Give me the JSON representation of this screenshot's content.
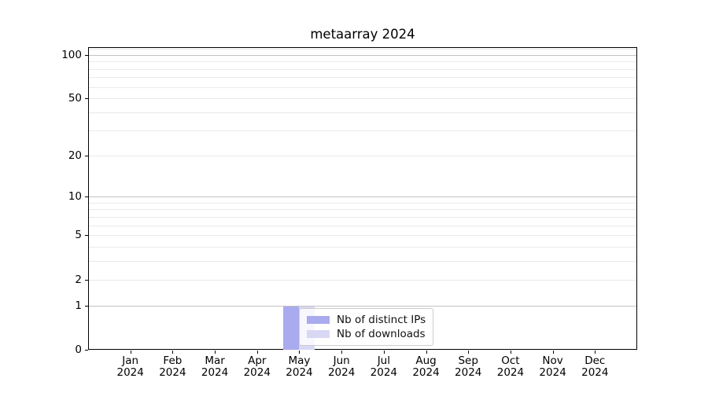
{
  "figure": {
    "background": "#ffffff"
  },
  "chart_data": {
    "type": "bar",
    "title": "metaarray 2024",
    "x_categories": [
      {
        "month": "Jan",
        "year": "2024"
      },
      {
        "month": "Feb",
        "year": "2024"
      },
      {
        "month": "Mar",
        "year": "2024"
      },
      {
        "month": "Apr",
        "year": "2024"
      },
      {
        "month": "May",
        "year": "2024"
      },
      {
        "month": "Jun",
        "year": "2024"
      },
      {
        "month": "Jul",
        "year": "2024"
      },
      {
        "month": "Aug",
        "year": "2024"
      },
      {
        "month": "Sep",
        "year": "2024"
      },
      {
        "month": "Oct",
        "year": "2024"
      },
      {
        "month": "Nov",
        "year": "2024"
      },
      {
        "month": "Dec",
        "year": "2024"
      }
    ],
    "series": [
      {
        "name": "Nb of distinct IPs",
        "color": "#aaaaee",
        "values": [
          0,
          0,
          0,
          0,
          1,
          0,
          0,
          0,
          0,
          0,
          0,
          0
        ]
      },
      {
        "name": "Nb of downloads",
        "color": "#d8d8f5",
        "values": [
          0,
          0,
          0,
          0,
          1,
          0,
          0,
          0,
          0,
          0,
          0,
          0
        ]
      }
    ],
    "yscale": "log(1+y)",
    "yticks": [
      0,
      1,
      2,
      5,
      10,
      20,
      50,
      100
    ],
    "ytick_labels": [
      "0",
      "1",
      "2",
      "5",
      "10",
      "20",
      "50",
      "100"
    ],
    "major_gridlines": [
      1,
      10,
      100
    ],
    "minor_gridlines": [
      2,
      3,
      4,
      5,
      6,
      7,
      8,
      9,
      20,
      30,
      40,
      50,
      60,
      70,
      80,
      90,
      110
    ],
    "ylim": [
      0,
      113
    ],
    "grid": true,
    "legend_position": "inside-bottom-center"
  }
}
